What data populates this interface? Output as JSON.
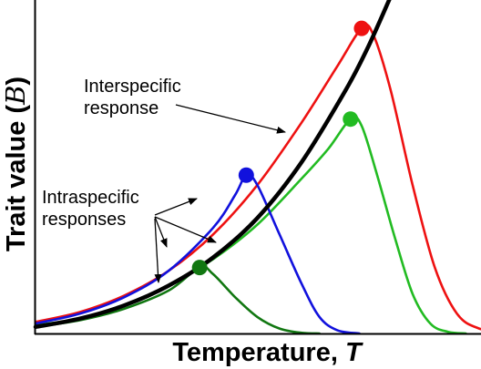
{
  "chart_data": {
    "type": "line",
    "xlabel": "Temperature, ",
    "xlabel_symbol": "T",
    "ylabel": "Trait value (",
    "ylabel_symbol": "B",
    "ylabel_close": ")",
    "xlim": [
      0,
      100
    ],
    "ylim": [
      0,
      100
    ],
    "grid": false,
    "ticks": false,
    "annotations": [
      {
        "id": "interspecific",
        "lines": [
          "Interspecific",
          "response"
        ]
      },
      {
        "id": "intraspecific",
        "lines": [
          "Intraspecific",
          "responses"
        ]
      }
    ],
    "series": [
      {
        "key": "interspecific",
        "color": "#000000",
        "width": 4.5,
        "points": [
          [
            0,
            2
          ],
          [
            10,
            4.5
          ],
          [
            20,
            8.5
          ],
          [
            30,
            14.5
          ],
          [
            40,
            23
          ],
          [
            50,
            35
          ],
          [
            60,
            52
          ],
          [
            70,
            74
          ],
          [
            75,
            87
          ],
          [
            80,
            102
          ]
        ]
      },
      {
        "key": "red",
        "color": "#ee1111",
        "width": 2.6,
        "peak": [
          73.5,
          92.5
        ],
        "points": [
          [
            0,
            3.5
          ],
          [
            10,
            6.5
          ],
          [
            20,
            11.5
          ],
          [
            30,
            19
          ],
          [
            40,
            30
          ],
          [
            50,
            45
          ],
          [
            60,
            64
          ],
          [
            68,
            81
          ],
          [
            73.5,
            92.5
          ],
          [
            76,
            91
          ],
          [
            80,
            74
          ],
          [
            85,
            45
          ],
          [
            90,
            20
          ],
          [
            95,
            6
          ],
          [
            100,
            1.5
          ],
          [
            107,
            0
          ]
        ]
      },
      {
        "key": "green",
        "color": "#22bb22",
        "width": 2.6,
        "peak": [
          71,
          65
        ],
        "points": [
          [
            0,
            2.5
          ],
          [
            10,
            4.5
          ],
          [
            20,
            8.5
          ],
          [
            30,
            14.5
          ],
          [
            40,
            22.5
          ],
          [
            50,
            33
          ],
          [
            60,
            47
          ],
          [
            66,
            56
          ],
          [
            71,
            65
          ],
          [
            73.5,
            63
          ],
          [
            77,
            48
          ],
          [
            81,
            29
          ],
          [
            85,
            12
          ],
          [
            89,
            3
          ],
          [
            93,
            0.5
          ],
          [
            97,
            0
          ]
        ]
      },
      {
        "key": "blue",
        "color": "#1111dd",
        "width": 2.6,
        "peak": [
          47.5,
          48
        ],
        "points": [
          [
            0,
            3
          ],
          [
            10,
            6
          ],
          [
            20,
            11
          ],
          [
            30,
            19
          ],
          [
            40,
            32
          ],
          [
            45,
            42
          ],
          [
            47.5,
            48
          ],
          [
            50,
            45
          ],
          [
            55,
            30
          ],
          [
            60,
            15
          ],
          [
            64,
            5
          ],
          [
            68,
            1
          ],
          [
            73,
            0
          ]
        ]
      },
      {
        "key": "darkgreen",
        "color": "#117711",
        "width": 2.6,
        "peak": [
          37,
          20
        ],
        "points": [
          [
            0,
            2
          ],
          [
            10,
            4
          ],
          [
            20,
            7.5
          ],
          [
            30,
            13
          ],
          [
            37,
            20
          ],
          [
            40,
            18
          ],
          [
            45,
            11
          ],
          [
            50,
            5
          ],
          [
            55,
            1.5
          ],
          [
            60,
            0.2
          ],
          [
            64,
            0
          ]
        ]
      }
    ]
  }
}
